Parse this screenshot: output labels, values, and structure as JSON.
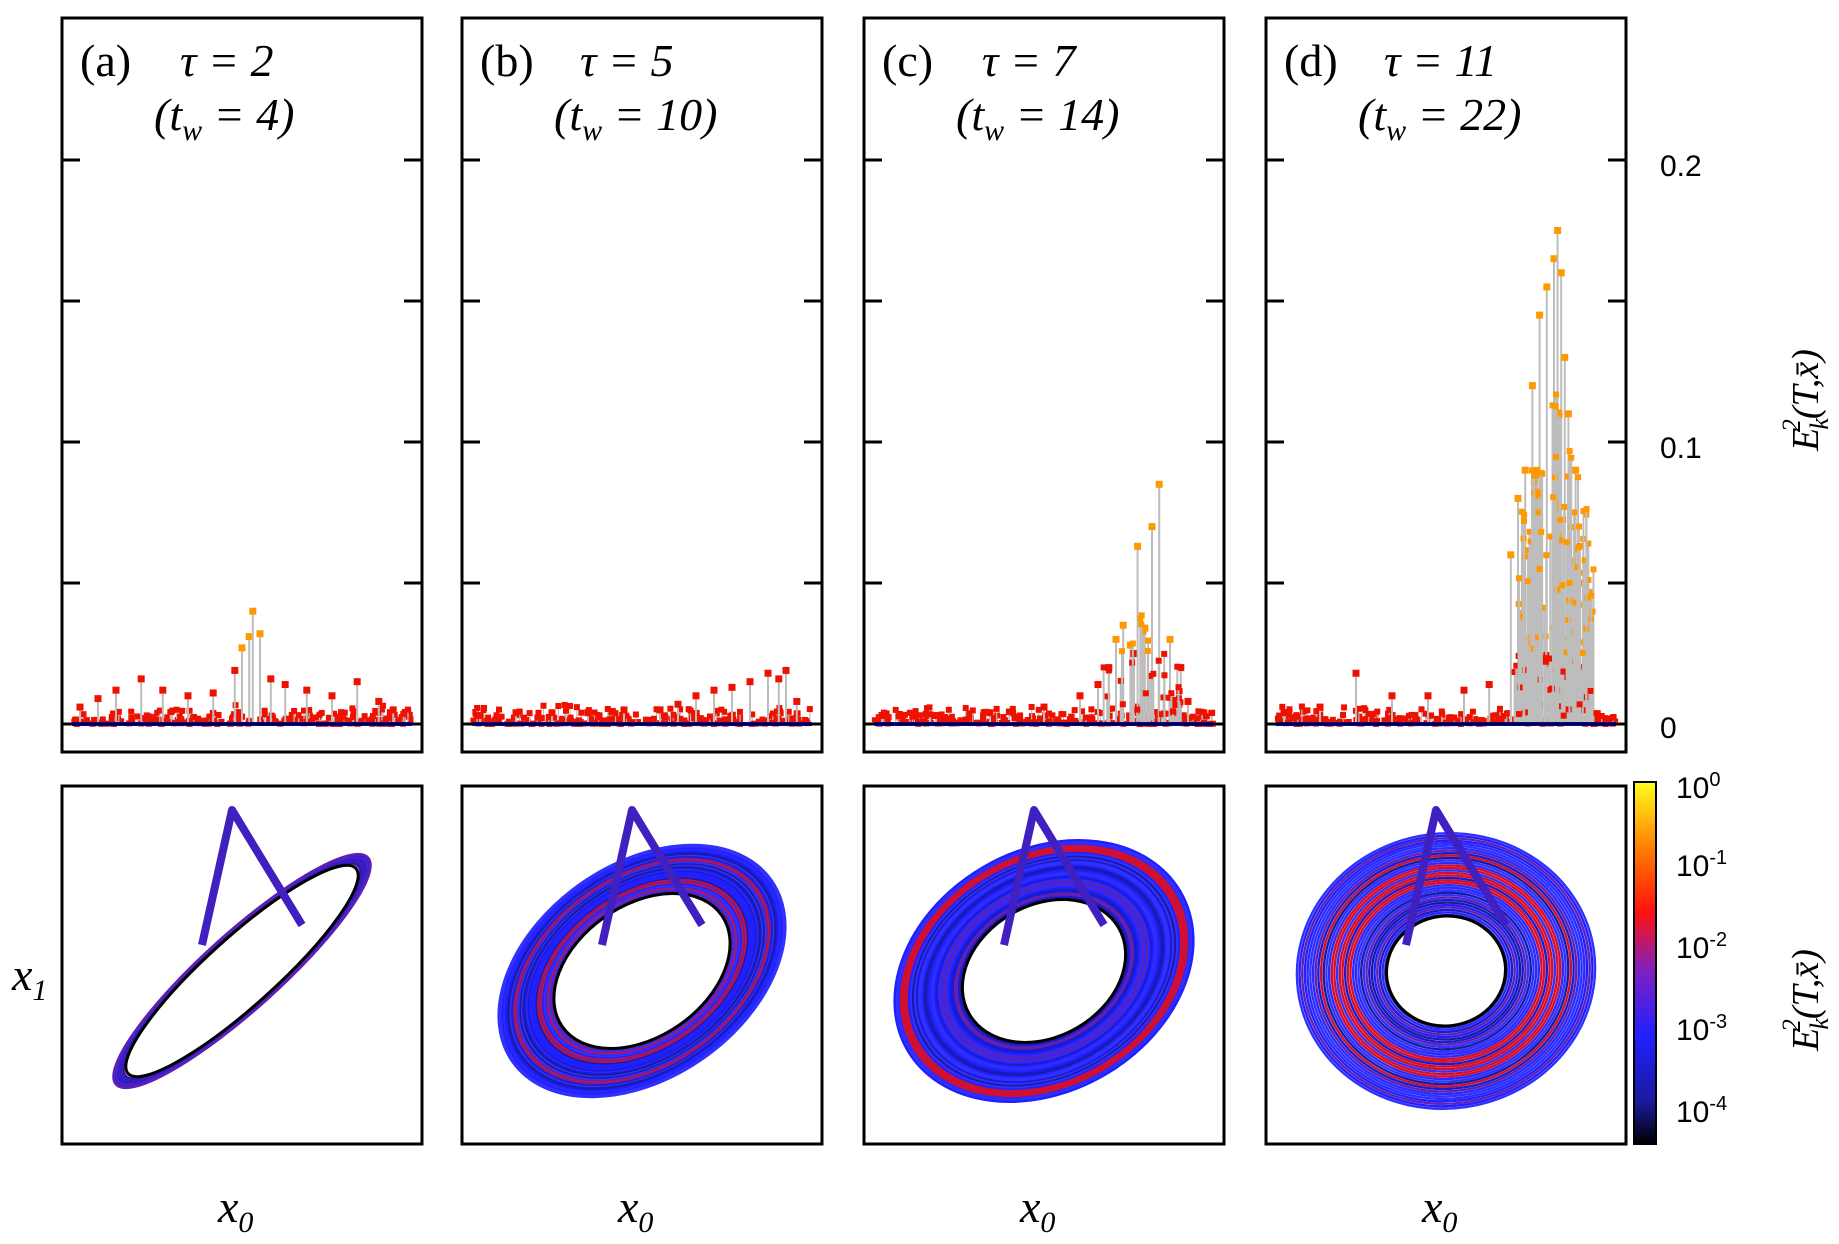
{
  "figure": {
    "colorbar_label": "E_k^2(T,x̄)",
    "top_ylabel": "E_k^2(T,x̄)",
    "bottom_ylabel": "x_1",
    "bottom_xlabel": "x_0"
  },
  "panels": [
    {
      "letter": "(a)",
      "tau": "τ = 2",
      "tw": "(t_w = 4)"
    },
    {
      "letter": "(b)",
      "tau": "τ = 5",
      "tw": "(t_w = 10)"
    },
    {
      "letter": "(c)",
      "tau": "τ = 7",
      "tw": "(t_w = 14)"
    },
    {
      "letter": "(d)",
      "tau": "τ = 11",
      "tw": "(t_w = 22)"
    }
  ],
  "colors": {
    "stem": "#bdbdbd",
    "low": "#0000cc",
    "mid": "#ee1100",
    "high": "#ff9900",
    "colormap": [
      "#000000",
      "#1a1aa0",
      "#2020ff",
      "#8020c0",
      "#ff1010",
      "#ff8000",
      "#ffff20"
    ]
  },
  "chart_data": [
    {
      "type": "scatter",
      "panel": "(a)",
      "ylabel": "E_k^2(T,x̄)",
      "ylim": [
        0,
        0.2
      ],
      "yticks": [
        "0",
        "0.1",
        "0.2"
      ],
      "x": [
        0.05,
        0.1,
        0.15,
        0.22,
        0.28,
        0.35,
        0.42,
        0.48,
        0.5,
        0.52,
        0.53,
        0.55,
        0.58,
        0.62,
        0.68,
        0.75,
        0.82,
        0.88,
        0.92
      ],
      "y": [
        0.006,
        0.009,
        0.012,
        0.016,
        0.012,
        0.01,
        0.011,
        0.019,
        0.027,
        0.031,
        0.04,
        0.032,
        0.016,
        0.014,
        0.012,
        0.01,
        0.015,
        0.008,
        0.005
      ]
    },
    {
      "type": "scatter",
      "panel": "(b)",
      "ylim": [
        0,
        0.2
      ],
      "x": [
        0.05,
        0.15,
        0.25,
        0.35,
        0.45,
        0.55,
        0.6,
        0.65,
        0.7,
        0.75,
        0.8,
        0.85,
        0.88,
        0.9,
        0.93
      ],
      "y": [
        0.003,
        0.004,
        0.004,
        0.004,
        0.005,
        0.005,
        0.007,
        0.01,
        0.012,
        0.013,
        0.015,
        0.018,
        0.016,
        0.019,
        0.008
      ]
    },
    {
      "type": "scatter",
      "panel": "(c)",
      "ylim": [
        0,
        0.2
      ],
      "x": [
        0.05,
        0.2,
        0.35,
        0.5,
        0.6,
        0.65,
        0.68,
        0.7,
        0.72,
        0.74,
        0.75,
        0.76,
        0.78,
        0.8,
        0.82,
        0.85,
        0.88,
        0.9
      ],
      "y": [
        0.003,
        0.003,
        0.004,
        0.006,
        0.01,
        0.014,
        0.02,
        0.03,
        0.035,
        0.028,
        0.025,
        0.063,
        0.034,
        0.07,
        0.085,
        0.03,
        0.02,
        0.008
      ]
    },
    {
      "type": "scatter",
      "panel": "(d)",
      "ylim": [
        0,
        0.2
      ],
      "x": [
        0.05,
        0.15,
        0.25,
        0.35,
        0.45,
        0.55,
        0.62,
        0.68,
        0.7,
        0.72,
        0.74,
        0.76,
        0.78,
        0.8,
        0.81,
        0.82,
        0.83,
        0.84,
        0.86,
        0.88,
        0.9
      ],
      "y": [
        0.004,
        0.006,
        0.018,
        0.01,
        0.01,
        0.012,
        0.014,
        0.06,
        0.08,
        0.09,
        0.12,
        0.145,
        0.155,
        0.165,
        0.175,
        0.16,
        0.13,
        0.11,
        0.09,
        0.05,
        0.02
      ]
    },
    {
      "type": "colorbar",
      "label": "E_k^2(T,x̄)",
      "scale": "log",
      "range": [
        0.0001,
        1
      ],
      "tick_labels": [
        "10^0",
        "10^-1",
        "10^-2",
        "10^-3",
        "10^-4"
      ]
    }
  ]
}
